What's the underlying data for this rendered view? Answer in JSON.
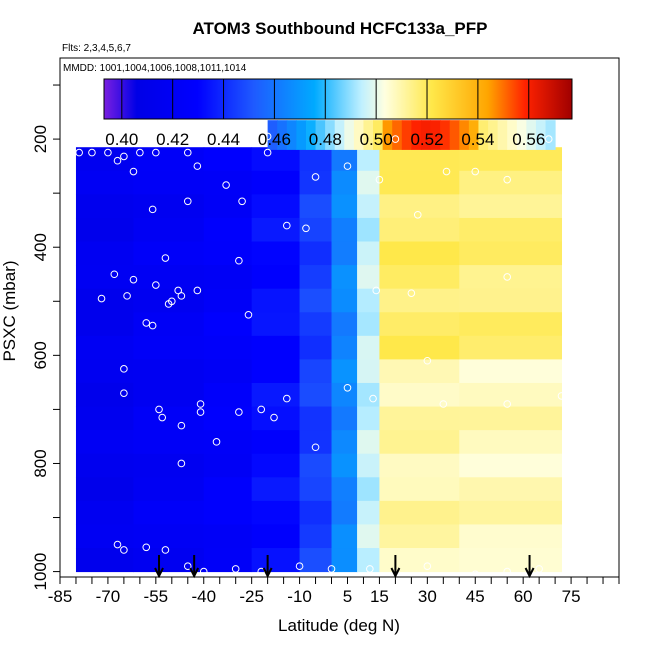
{
  "chart_data": {
    "type": "heatmap",
    "title": "ATOM3 Southbound HCFC133a_PFP",
    "subtitle_flights": "Flts: 2,3,4,5,6,7",
    "subtitle_dates": "MMDD: 1001,1004,1006,1008,1011,1014",
    "xlabel": "Latitude (deg N)",
    "ylabel": "PSXC (mbar)",
    "xlim": [
      -85,
      90
    ],
    "ylim": [
      1010,
      50
    ],
    "y_reversed": true,
    "x_ticks": [
      -85,
      -70,
      -55,
      -40,
      -25,
      -10,
      5,
      15,
      30,
      45,
      60,
      75
    ],
    "y_ticks": [
      200,
      400,
      600,
      800,
      1000
    ],
    "colorbar": {
      "range": [
        0.393,
        0.577
      ],
      "tick_values": [
        0.4,
        0.42,
        0.44,
        0.46,
        0.48,
        0.5,
        0.52,
        0.54,
        0.56
      ],
      "tick_labels": [
        "0.40",
        "0.42",
        "0.44",
        "0.46",
        "0.48",
        "0.50",
        "0.52",
        "0.54",
        "0.56"
      ],
      "colors": [
        "#7a1fe0",
        "#0000e6",
        "#0000ff",
        "#1f5aff",
        "#00aaff",
        "#bff0ff",
        "#ffffe0",
        "#ffe84a",
        "#ffa500",
        "#ff2200",
        "#a00000"
      ],
      "stops": [
        0.0,
        0.07,
        0.2,
        0.32,
        0.45,
        0.55,
        0.6,
        0.7,
        0.82,
        0.9,
        1.0
      ]
    },
    "profiles": [
      {
        "lat_range": [
          -80,
          -62
        ],
        "p_range": [
          215,
          1000
        ],
        "value": 0.415
      },
      {
        "lat_range": [
          -62,
          -40
        ],
        "p_range": [
          215,
          1000
        ],
        "value": 0.42
      },
      {
        "lat_range": [
          -40,
          -25
        ],
        "p_range": [
          215,
          1000
        ],
        "value": 0.425
      },
      {
        "lat_range": [
          -25,
          -10
        ],
        "p_range": [
          215,
          1000
        ],
        "value": 0.432
      },
      {
        "lat_range": [
          -10,
          0
        ],
        "p_range": [
          215,
          1000
        ],
        "value": 0.445
      },
      {
        "lat_range": [
          0,
          8
        ],
        "p_range": [
          215,
          1000
        ],
        "value": 0.465
      },
      {
        "lat_range": [
          8,
          15
        ],
        "p_range": [
          215,
          1000
        ],
        "value": 0.495
      },
      {
        "lat_range": [
          15,
          40
        ],
        "p_range": [
          215,
          1000
        ],
        "value": 0.51
      },
      {
        "lat_range": [
          40,
          72
        ],
        "p_range": [
          215,
          1000
        ],
        "value": 0.508
      }
    ],
    "upper_strip": {
      "lat_range": [
        -20,
        70
      ],
      "p_range": [
        165,
        220
      ],
      "value": 0.52
    },
    "samples": [
      {
        "lat": -79,
        "p": 225,
        "value": 0.415
      },
      {
        "lat": -75,
        "p": 225,
        "value": 0.418
      },
      {
        "lat": -70,
        "p": 225,
        "value": 0.42
      },
      {
        "lat": -67,
        "p": 240,
        "value": 0.422
      },
      {
        "lat": -65,
        "p": 232,
        "value": 0.419
      },
      {
        "lat": -62,
        "p": 260,
        "value": 0.421
      },
      {
        "lat": -60,
        "p": 225,
        "value": 0.417
      },
      {
        "lat": -55,
        "p": 225,
        "value": 0.423
      },
      {
        "lat": -45,
        "p": 225,
        "value": 0.425
      },
      {
        "lat": -42,
        "p": 250,
        "value": 0.424
      },
      {
        "lat": -33,
        "p": 285,
        "value": 0.43
      },
      {
        "lat": -20,
        "p": 225,
        "value": 0.44
      },
      {
        "lat": -5,
        "p": 270,
        "value": 0.45
      },
      {
        "lat": 5,
        "p": 250,
        "value": 0.47
      },
      {
        "lat": 15,
        "p": 275,
        "value": 0.498
      },
      {
        "lat": 20,
        "p": 200,
        "value": 0.53
      },
      {
        "lat": 36,
        "p": 260,
        "value": 0.52
      },
      {
        "lat": 45,
        "p": 260,
        "value": 0.525
      },
      {
        "lat": 55,
        "p": 275,
        "value": 0.515
      },
      {
        "lat": -20,
        "p": 195,
        "value": 0.47
      },
      {
        "lat": 68,
        "p": 200,
        "value": 0.49
      },
      {
        "lat": -56,
        "p": 330,
        "value": 0.418
      },
      {
        "lat": -45,
        "p": 315,
        "value": 0.426
      },
      {
        "lat": -28,
        "p": 315,
        "value": 0.433
      },
      {
        "lat": -14,
        "p": 360,
        "value": 0.44
      },
      {
        "lat": -8,
        "p": 365,
        "value": 0.446
      },
      {
        "lat": 27,
        "p": 340,
        "value": 0.512
      },
      {
        "lat": -52,
        "p": 420,
        "value": 0.42
      },
      {
        "lat": -29,
        "p": 425,
        "value": 0.432
      },
      {
        "lat": -68,
        "p": 450,
        "value": 0.418
      },
      {
        "lat": -62,
        "p": 460,
        "value": 0.419
      },
      {
        "lat": -55,
        "p": 470,
        "value": 0.42
      },
      {
        "lat": -48,
        "p": 480,
        "value": 0.424
      },
      {
        "lat": -42,
        "p": 480,
        "value": 0.426
      },
      {
        "lat": -72,
        "p": 495,
        "value": 0.416
      },
      {
        "lat": -64,
        "p": 490,
        "value": 0.418
      },
      {
        "lat": -50,
        "p": 500,
        "value": 0.423
      },
      {
        "lat": -47,
        "p": 490,
        "value": 0.424
      },
      {
        "lat": -51,
        "p": 505,
        "value": 0.423
      },
      {
        "lat": -26,
        "p": 525,
        "value": 0.434
      },
      {
        "lat": 14,
        "p": 480,
        "value": 0.5
      },
      {
        "lat": 25,
        "p": 485,
        "value": 0.51
      },
      {
        "lat": 55,
        "p": 455,
        "value": 0.512
      },
      {
        "lat": -58,
        "p": 540,
        "value": 0.42
      },
      {
        "lat": -56,
        "p": 545,
        "value": 0.421
      },
      {
        "lat": -65,
        "p": 625,
        "value": 0.418
      },
      {
        "lat": -41,
        "p": 690,
        "value": 0.425
      },
      {
        "lat": -29,
        "p": 705,
        "value": 0.433
      },
      {
        "lat": -22,
        "p": 700,
        "value": 0.436
      },
      {
        "lat": -14,
        "p": 680,
        "value": 0.441
      },
      {
        "lat": 5,
        "p": 660,
        "value": 0.465
      },
      {
        "lat": 13,
        "p": 680,
        "value": 0.495
      },
      {
        "lat": -65,
        "p": 670,
        "value": 0.418
      },
      {
        "lat": -54,
        "p": 700,
        "value": 0.421
      },
      {
        "lat": -53,
        "p": 715,
        "value": 0.421
      },
      {
        "lat": -47,
        "p": 730,
        "value": 0.424
      },
      {
        "lat": -41,
        "p": 705,
        "value": 0.426
      },
      {
        "lat": -18,
        "p": 715,
        "value": 0.437
      },
      {
        "lat": 35,
        "p": 690,
        "value": 0.51
      },
      {
        "lat": 55,
        "p": 690,
        "value": 0.51
      },
      {
        "lat": 30,
        "p": 610,
        "value": 0.508
      },
      {
        "lat": 72,
        "p": 675,
        "value": 0.505
      },
      {
        "lat": -36,
        "p": 760,
        "value": 0.428
      },
      {
        "lat": -47,
        "p": 800,
        "value": 0.425
      },
      {
        "lat": -5,
        "p": 770,
        "value": 0.448
      },
      {
        "lat": -67,
        "p": 950,
        "value": 0.418
      },
      {
        "lat": -65,
        "p": 960,
        "value": 0.417
      },
      {
        "lat": -58,
        "p": 955,
        "value": 0.42
      },
      {
        "lat": -52,
        "p": 960,
        "value": 0.421
      },
      {
        "lat": -45,
        "p": 990,
        "value": 0.424
      },
      {
        "lat": -40,
        "p": 1000,
        "value": 0.426
      },
      {
        "lat": -30,
        "p": 995,
        "value": 0.432
      },
      {
        "lat": -22,
        "p": 1000,
        "value": 0.436
      },
      {
        "lat": -10,
        "p": 990,
        "value": 0.445
      },
      {
        "lat": 0,
        "p": 995,
        "value": 0.455
      },
      {
        "lat": 12,
        "p": 995,
        "value": 0.49
      },
      {
        "lat": 30,
        "p": 990,
        "value": 0.508
      },
      {
        "lat": 45,
        "p": 1005,
        "value": 0.51
      },
      {
        "lat": 55,
        "p": 1000,
        "value": 0.509
      },
      {
        "lat": 65,
        "p": 995,
        "value": 0.508
      }
    ],
    "arrows_lat": [
      -54,
      -43,
      -20,
      20,
      62
    ]
  }
}
